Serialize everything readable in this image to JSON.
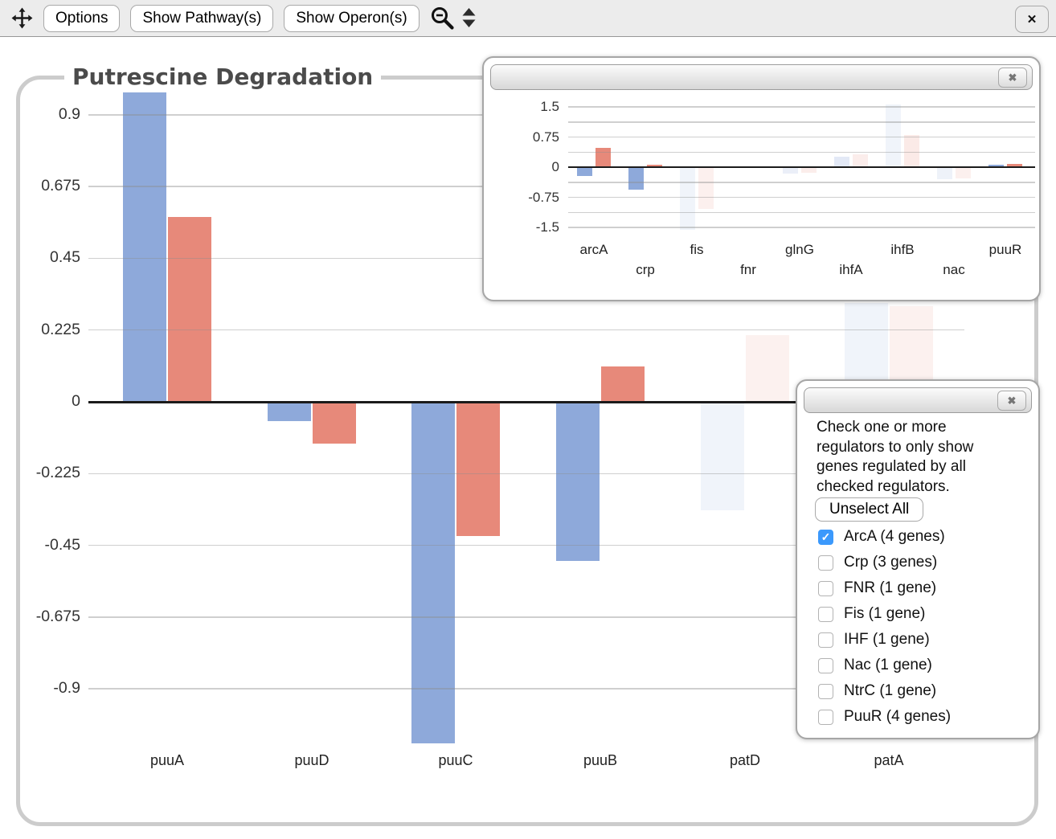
{
  "toolbar": {
    "options": "Options",
    "show_pathways": "Show Pathway(s)",
    "show_operons": "Show Operon(s)",
    "close": "✕"
  },
  "inset_panel": {
    "close": "✖"
  },
  "filter_panel": {
    "close": "✖",
    "description": "Check one or more regulators to only show genes regulated by all checked regulators.",
    "unselect_all": "Unselect All",
    "check_glyph": "✓",
    "checkboxes": [
      {
        "label": "ArcA (4 genes)",
        "checked": true
      },
      {
        "label": "Crp (3 genes)",
        "checked": false
      },
      {
        "label": "FNR (1 gene)",
        "checked": false
      },
      {
        "label": "Fis (1 gene)",
        "checked": false
      },
      {
        "label": "IHF (1 gene)",
        "checked": false
      },
      {
        "label": "Nac (1 gene)",
        "checked": false
      },
      {
        "label": "NtrC (1 gene)",
        "checked": false
      },
      {
        "label": "PuuR (4 genes)",
        "checked": false
      }
    ]
  },
  "colors": {
    "bar_blue": "#8ea9da",
    "bar_salmon": "#e7897a",
    "grid": "#cccccc",
    "axis": "#1b1b1b",
    "checkbox_checked": "#3b99fc"
  },
  "chart_data": [
    {
      "id": "main-gene-chart",
      "type": "bar",
      "title": "Putrescine Degradation",
      "xlabel": "",
      "ylabel": "",
      "categories": [
        "puuA",
        "puuD",
        "puuC",
        "puuB",
        "patD",
        "patA"
      ],
      "series": [
        {
          "name": "blue",
          "color": "#8ea9da",
          "values": [
            0.97,
            -0.06,
            -1.07,
            -0.5,
            -0.34,
            0.31
          ],
          "opacities": [
            1,
            1,
            1,
            1,
            0.13,
            0.13
          ]
        },
        {
          "name": "salmon",
          "color": "#e7897a",
          "values": [
            0.58,
            -0.13,
            -0.42,
            0.11,
            0.21,
            0.3
          ],
          "opacities": [
            1,
            1,
            1,
            1,
            0.12,
            0.12
          ]
        }
      ],
      "yticks": [
        0.9,
        0.675,
        0.45,
        0.225,
        0,
        -0.225,
        -0.45,
        -0.675,
        -0.9
      ],
      "ylim": [
        -1.1,
        1.0
      ],
      "grid": true,
      "legend": false
    },
    {
      "id": "regulator-inset-chart",
      "type": "bar",
      "title": "",
      "xlabel": "",
      "ylabel": "",
      "categories": [
        "arcA",
        "crp",
        "fis",
        "fnr",
        "glnG",
        "ihfA",
        "ihfB",
        "nac",
        "puuR"
      ],
      "series": [
        {
          "name": "blue",
          "color": "#8ea9da",
          "values": [
            -0.22,
            -0.56,
            -1.56,
            0,
            -0.16,
            0.26,
            1.56,
            -0.29,
            0.06
          ],
          "opacities": [
            1,
            1,
            0.13,
            0,
            0.18,
            0.25,
            0.13,
            0.15,
            1
          ]
        },
        {
          "name": "salmon",
          "color": "#e7897a",
          "values": [
            0.48,
            0.06,
            -1.04,
            0,
            -0.14,
            0.32,
            0.8,
            -0.27,
            0.08
          ],
          "opacities": [
            1,
            1,
            0.13,
            0,
            0.15,
            0.15,
            0.18,
            0.13,
            1
          ]
        }
      ],
      "yticks": [
        1.5,
        0.75,
        0,
        -0.75,
        -1.5
      ],
      "minor_gridline_step": 0.375,
      "ylim": [
        -1.7,
        1.7
      ],
      "grid": true,
      "legend": false
    }
  ]
}
